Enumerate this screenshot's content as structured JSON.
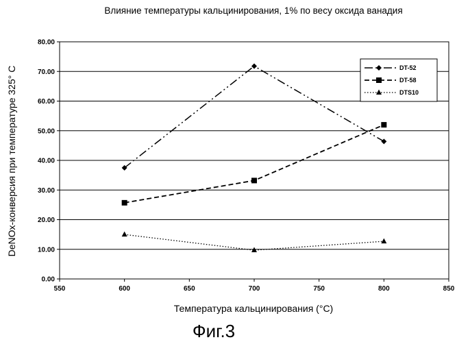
{
  "chart_data": {
    "type": "line",
    "title": "Влияние температуры кальцинирования, 1% по весу оксида ванадия",
    "xlabel": "Температура кальцинирования (°С)",
    "ylabel": "DeNOx-конверсия при температуре 325° С",
    "xlim": [
      550,
      850
    ],
    "ylim": [
      0,
      80
    ],
    "x_ticks": [
      "550",
      "600",
      "650",
      "700",
      "750",
      "800",
      "850"
    ],
    "y_ticks": [
      "0.00",
      "10.00",
      "20.00",
      "30.00",
      "40.00",
      "50.00",
      "60.00",
      "70.00",
      "80.00"
    ],
    "grid": "horizontal",
    "legend_position": "top-right",
    "series": [
      {
        "name": "DT-52",
        "x": [
          600,
          700,
          800
        ],
        "y": [
          37.5,
          71.8,
          46.4
        ],
        "marker": "diamond",
        "line": "dash-dot-dot"
      },
      {
        "name": "DT-58",
        "x": [
          600,
          700,
          800
        ],
        "y": [
          25.7,
          33.2,
          52.0
        ],
        "marker": "square",
        "line": "dashed"
      },
      {
        "name": "DTS10",
        "x": [
          600,
          700,
          800
        ],
        "y": [
          15.0,
          9.7,
          12.7
        ],
        "marker": "triangle",
        "line": "dotted"
      }
    ]
  },
  "caption": "Фиг.3"
}
